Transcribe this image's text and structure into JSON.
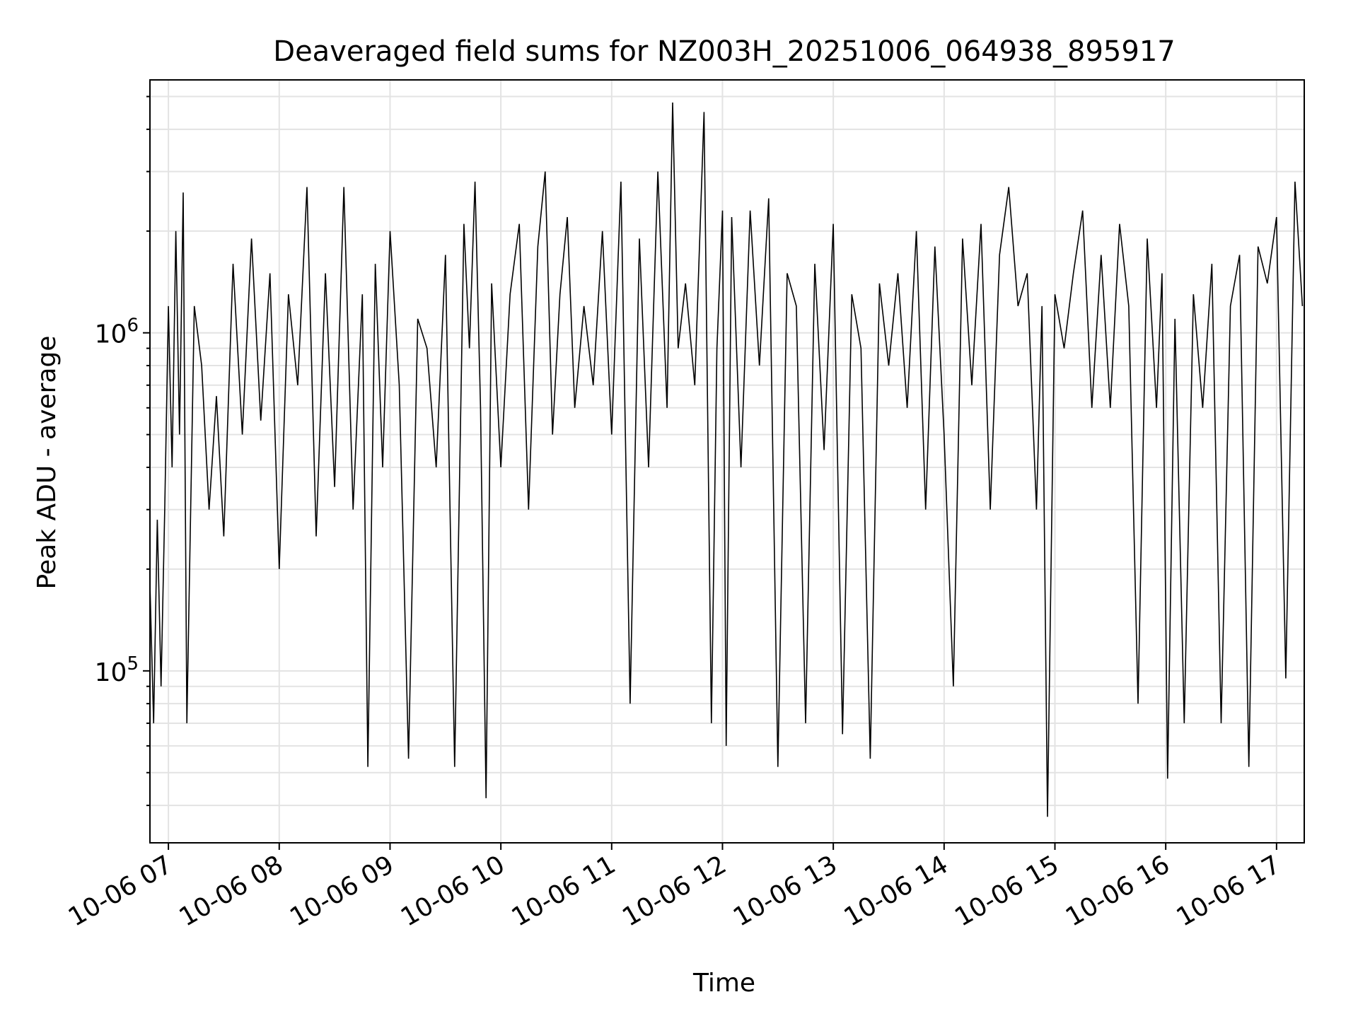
{
  "chart_data": {
    "type": "line",
    "title": "Deaveraged field sums for NZ003H_20251006_064938_895917",
    "xlabel": "Time",
    "ylabel": "Peak ADU - average",
    "y_scale": "log",
    "ylim": [
      31000,
      5600000
    ],
    "xlim": [
      "2025-10-06 06:50",
      "2025-10-06 17:15"
    ],
    "grid": true,
    "legend": "none",
    "line_color": "#000000",
    "x_ticks": [
      "10-06 07",
      "10-06 08",
      "10-06 09",
      "10-06 10",
      "10-06 11",
      "10-06 12",
      "10-06 13",
      "10-06 14",
      "10-06 15",
      "10-06 16",
      "10-06 17"
    ],
    "y_ticks": [
      {
        "value": 100000,
        "base": "10",
        "exp": "5"
      },
      {
        "value": 1000000,
        "base": "10",
        "exp": "6"
      }
    ],
    "series": [
      {
        "x": [
          "2025-10-06 06:50",
          "2025-10-06 06:52",
          "2025-10-06 06:54",
          "2025-10-06 06:56",
          "2025-10-06 06:58",
          "2025-10-06 07:00",
          "2025-10-06 07:02",
          "2025-10-06 07:04",
          "2025-10-06 07:06",
          "2025-10-06 07:08",
          "2025-10-06 07:10",
          "2025-10-06 07:14",
          "2025-10-06 07:18",
          "2025-10-06 07:22",
          "2025-10-06 07:26",
          "2025-10-06 07:30",
          "2025-10-06 07:35",
          "2025-10-06 07:40",
          "2025-10-06 07:45",
          "2025-10-06 07:50",
          "2025-10-06 07:55",
          "2025-10-06 08:00",
          "2025-10-06 08:05",
          "2025-10-06 08:10",
          "2025-10-06 08:15",
          "2025-10-06 08:20",
          "2025-10-06 08:25",
          "2025-10-06 08:30",
          "2025-10-06 08:35",
          "2025-10-06 08:40",
          "2025-10-06 08:45",
          "2025-10-06 08:48",
          "2025-10-06 08:52",
          "2025-10-06 08:56",
          "2025-10-06 09:00",
          "2025-10-06 09:05",
          "2025-10-06 09:10",
          "2025-10-06 09:15",
          "2025-10-06 09:20",
          "2025-10-06 09:25",
          "2025-10-06 09:30",
          "2025-10-06 09:35",
          "2025-10-06 09:40",
          "2025-10-06 09:43",
          "2025-10-06 09:46",
          "2025-10-06 09:49",
          "2025-10-06 09:52",
          "2025-10-06 09:55",
          "2025-10-06 10:00",
          "2025-10-06 10:05",
          "2025-10-06 10:10",
          "2025-10-06 10:15",
          "2025-10-06 10:20",
          "2025-10-06 10:24",
          "2025-10-06 10:28",
          "2025-10-06 10:32",
          "2025-10-06 10:36",
          "2025-10-06 10:40",
          "2025-10-06 10:45",
          "2025-10-06 10:50",
          "2025-10-06 10:55",
          "2025-10-06 11:00",
          "2025-10-06 11:05",
          "2025-10-06 11:10",
          "2025-10-06 11:15",
          "2025-10-06 11:20",
          "2025-10-06 11:25",
          "2025-10-06 11:30",
          "2025-10-06 11:33",
          "2025-10-06 11:36",
          "2025-10-06 11:40",
          "2025-10-06 11:45",
          "2025-10-06 11:50",
          "2025-10-06 11:54",
          "2025-10-06 11:57",
          "2025-10-06 12:00",
          "2025-10-06 12:02",
          "2025-10-06 12:05",
          "2025-10-06 12:10",
          "2025-10-06 12:15",
          "2025-10-06 12:20",
          "2025-10-06 12:25",
          "2025-10-06 12:30",
          "2025-10-06 12:35",
          "2025-10-06 12:40",
          "2025-10-06 12:45",
          "2025-10-06 12:50",
          "2025-10-06 12:55",
          "2025-10-06 13:00",
          "2025-10-06 13:05",
          "2025-10-06 13:10",
          "2025-10-06 13:15",
          "2025-10-06 13:20",
          "2025-10-06 13:25",
          "2025-10-06 13:30",
          "2025-10-06 13:35",
          "2025-10-06 13:40",
          "2025-10-06 13:45",
          "2025-10-06 13:50",
          "2025-10-06 13:55",
          "2025-10-06 14:00",
          "2025-10-06 14:05",
          "2025-10-06 14:10",
          "2025-10-06 14:15",
          "2025-10-06 14:20",
          "2025-10-06 14:25",
          "2025-10-06 14:30",
          "2025-10-06 14:35",
          "2025-10-06 14:40",
          "2025-10-06 14:45",
          "2025-10-06 14:50",
          "2025-10-06 14:53",
          "2025-10-06 14:56",
          "2025-10-06 15:00",
          "2025-10-06 15:05",
          "2025-10-06 15:10",
          "2025-10-06 15:15",
          "2025-10-06 15:20",
          "2025-10-06 15:25",
          "2025-10-06 15:30",
          "2025-10-06 15:35",
          "2025-10-06 15:40",
          "2025-10-06 15:45",
          "2025-10-06 15:50",
          "2025-10-06 15:55",
          "2025-10-06 15:58",
          "2025-10-06 16:01",
          "2025-10-06 16:05",
          "2025-10-06 16:10",
          "2025-10-06 16:15",
          "2025-10-06 16:20",
          "2025-10-06 16:25",
          "2025-10-06 16:30",
          "2025-10-06 16:35",
          "2025-10-06 16:40",
          "2025-10-06 16:45",
          "2025-10-06 16:50",
          "2025-10-06 16:55",
          "2025-10-06 17:00",
          "2025-10-06 17:05",
          "2025-10-06 17:10",
          "2025-10-06 17:14"
        ],
        "y": [
          180000,
          70000,
          280000,
          90000,
          300000,
          1200000,
          400000,
          2000000,
          500000,
          2600000,
          70000,
          1200000,
          800000,
          300000,
          650000,
          250000,
          1600000,
          500000,
          1900000,
          550000,
          1500000,
          200000,
          1300000,
          700000,
          2700000,
          250000,
          1500000,
          350000,
          2700000,
          300000,
          1300000,
          52000,
          1600000,
          400000,
          2000000,
          700000,
          55000,
          1100000,
          900000,
          400000,
          1700000,
          52000,
          2100000,
          900000,
          2800000,
          600000,
          42000,
          1400000,
          400000,
          1300000,
          2100000,
          300000,
          1800000,
          3000000,
          500000,
          1300000,
          2200000,
          600000,
          1200000,
          700000,
          2000000,
          500000,
          2800000,
          80000,
          1900000,
          400000,
          3000000,
          600000,
          4800000,
          900000,
          1400000,
          700000,
          4500000,
          70000,
          900000,
          2300000,
          60000,
          2200000,
          400000,
          2300000,
          800000,
          2500000,
          52000,
          1500000,
          1200000,
          70000,
          1600000,
          450000,
          2100000,
          65000,
          1300000,
          900000,
          55000,
          1400000,
          800000,
          1500000,
          600000,
          2000000,
          300000,
          1800000,
          500000,
          90000,
          1900000,
          700000,
          2100000,
          300000,
          1700000,
          2700000,
          1200000,
          1500000,
          300000,
          1200000,
          37000,
          1300000,
          900000,
          1500000,
          2300000,
          600000,
          1700000,
          600000,
          2100000,
          1200000,
          80000,
          1900000,
          600000,
          1500000,
          48000,
          1100000,
          70000,
          1300000,
          600000,
          1600000,
          70000,
          1200000,
          1700000,
          52000,
          1800000,
          1400000,
          2200000,
          95000,
          2800000,
          1200000
        ]
      }
    ]
  }
}
